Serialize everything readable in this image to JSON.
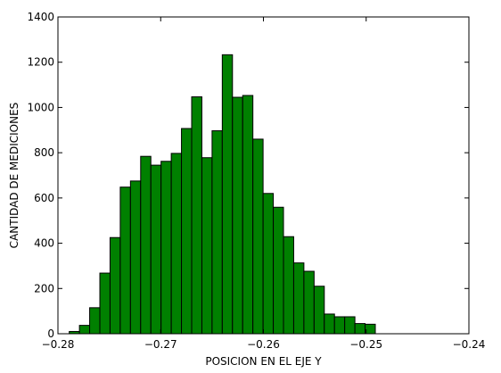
{
  "chart_data": {
    "type": "bar",
    "title": "",
    "xlabel": "POSICION EN EL EJE Y",
    "ylabel": "CANTIDAD DE MEDICIONES",
    "xlim": [
      -0.28,
      -0.24
    ],
    "ylim": [
      0,
      1400
    ],
    "xticks": [
      -0.28,
      -0.27,
      -0.26,
      -0.25,
      -0.24
    ],
    "xtick_labels": [
      "−0.28",
      "−0.27",
      "−0.26",
      "−0.25",
      "−0.24"
    ],
    "yticks": [
      0,
      200,
      400,
      600,
      800,
      1000,
      1200,
      1400
    ],
    "ytick_labels": [
      "0",
      "200",
      "400",
      "600",
      "800",
      "1000",
      "1200",
      "1400"
    ],
    "grid": false,
    "bar_color": "#008000",
    "edge_color": "#000000",
    "bin_start": -0.2789,
    "bin_width": 0.000993,
    "values": [
      10,
      37,
      115,
      268,
      425,
      648,
      675,
      784,
      745,
      762,
      797,
      907,
      1047,
      778,
      897,
      1233,
      1045,
      1053,
      860,
      620,
      559,
      429,
      313,
      276,
      210,
      87,
      75,
      75,
      45,
      42
    ]
  }
}
